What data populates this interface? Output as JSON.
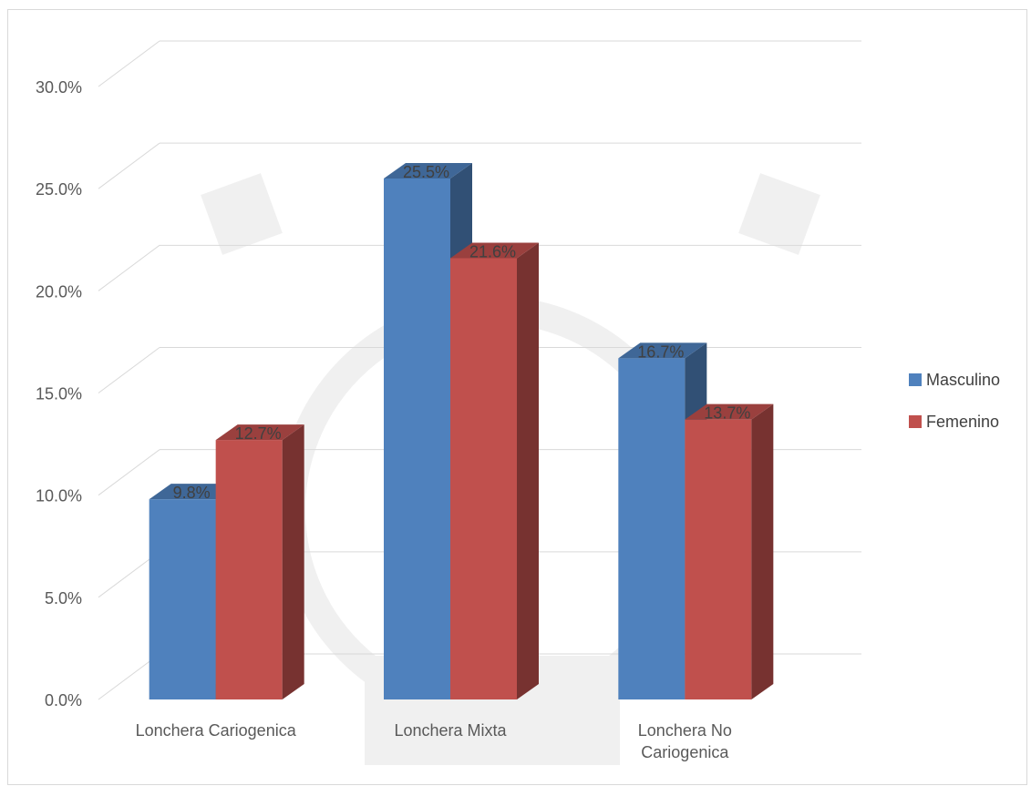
{
  "chart_data": {
    "type": "bar",
    "subtype": "3d-clustered-column",
    "categories": [
      "Lonchera Cariogenica",
      "Lonchera Mixta",
      "Lonchera No Cariogenica"
    ],
    "series": [
      {
        "name": "Masculino",
        "values": [
          9.8,
          25.5,
          16.7
        ],
        "color": "#4f81bd"
      },
      {
        "name": "Femenino",
        "values": [
          12.7,
          21.6,
          13.7
        ],
        "color": "#c0504d"
      }
    ],
    "ylim": [
      0,
      30
    ],
    "yticks": [
      0,
      5,
      10,
      15,
      20,
      25,
      30
    ],
    "ytick_labels": [
      "0.0%",
      "5.0%",
      "10.0%",
      "15.0%",
      "20.0%",
      "25.0%",
      "30.0%"
    ],
    "data_labels": [
      [
        "9.8%",
        "25.5%",
        "16.7%"
      ],
      [
        "12.7%",
        "21.6%",
        "13.7%"
      ]
    ],
    "grid": true,
    "legend_position": "right"
  }
}
